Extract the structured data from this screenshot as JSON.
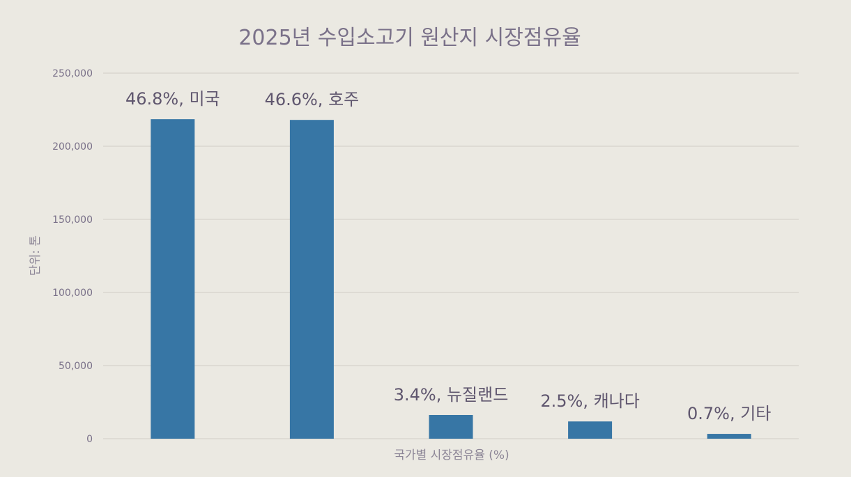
{
  "chart_data": {
    "type": "bar",
    "title": "2025년 수입소고기 원산지 시장점유율",
    "xlabel": "국가별 시장점유율 (%)",
    "ylabel": "단위: 톤",
    "ylim": [
      0,
      250000
    ],
    "yticks": [
      0,
      50000,
      100000,
      150000,
      200000,
      250000
    ],
    "ytick_labels": [
      "0",
      "50,000",
      "100,000",
      "150,000",
      "200,000",
      "250,000"
    ],
    "grid": true,
    "legend": "none",
    "categories": [
      "미국",
      "호주",
      "뉴질랜드",
      "캐나다",
      "기타"
    ],
    "values": [
      218500,
      218000,
      16200,
      11800,
      3300
    ],
    "data_labels": [
      "46.8%, 미국",
      "46.6%, 호주",
      "3.4%, 뉴질랜드",
      "2.5%, 캐나다",
      "0.7%, 기타"
    ],
    "colors": {
      "bar": "#3776a5",
      "grid": "#d6d3cc",
      "background": "#ebe9e2"
    }
  }
}
